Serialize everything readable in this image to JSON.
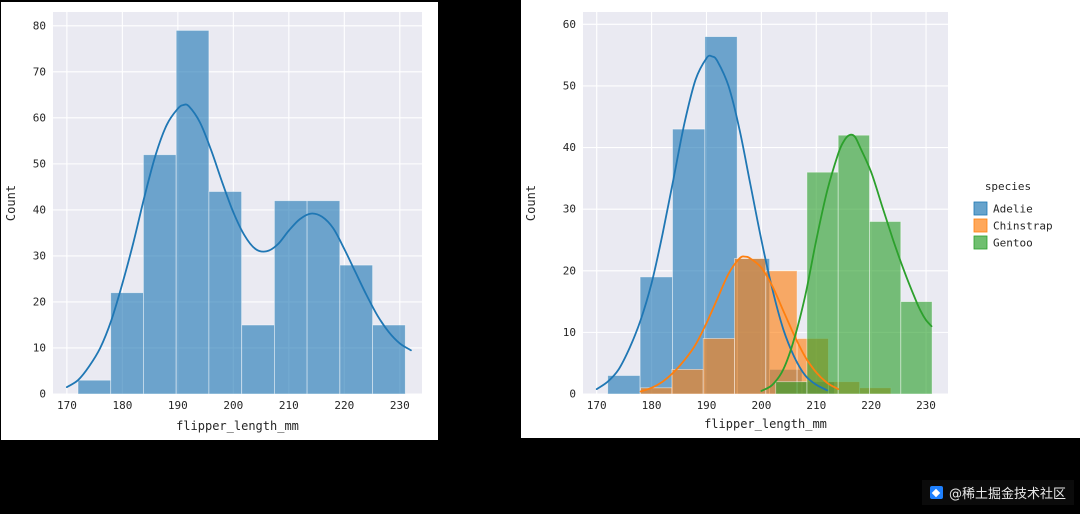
{
  "page": {
    "background": "#000000",
    "watermark_text": "@稀土掘金技术社区"
  },
  "chart_data": [
    {
      "type": "histogram",
      "title": "",
      "xlabel": "flipper_length_mm",
      "ylabel": "Count",
      "xlim": [
        167.5,
        234
      ],
      "ylim": [
        0,
        83
      ],
      "xticks": [
        170,
        180,
        190,
        200,
        210,
        220,
        230
      ],
      "yticks": [
        0,
        10,
        20,
        30,
        40,
        50,
        60,
        70,
        80
      ],
      "grid": true,
      "plot_background": "#eaeaf2",
      "legend": null,
      "series": [
        {
          "name": "flipper_length_mm",
          "color": "#1f77b4",
          "bin_start": 172,
          "bin_width": 5.9,
          "counts": [
            3,
            22,
            52,
            79,
            44,
            15,
            42,
            42,
            28,
            15
          ],
          "kde": [
            [
              170,
              1.5
            ],
            [
              172,
              3
            ],
            [
              174,
              6
            ],
            [
              176,
              10
            ],
            [
              178,
              16
            ],
            [
              180,
              24
            ],
            [
              182,
              33
            ],
            [
              184,
              43
            ],
            [
              186,
              52
            ],
            [
              188,
              58.5
            ],
            [
              190,
              62
            ],
            [
              191,
              62.8
            ],
            [
              192,
              62.5
            ],
            [
              194,
              59
            ],
            [
              196,
              53
            ],
            [
              198,
              46
            ],
            [
              200,
              39.5
            ],
            [
              202,
              34.5
            ],
            [
              204,
              31.5
            ],
            [
              206,
              31
            ],
            [
              208,
              32.5
            ],
            [
              210,
              35.5
            ],
            [
              212,
              38
            ],
            [
              214,
              39.2
            ],
            [
              216,
              38.5
            ],
            [
              218,
              36
            ],
            [
              220,
              31.5
            ],
            [
              222,
              26.5
            ],
            [
              224,
              21.5
            ],
            [
              226,
              17
            ],
            [
              228,
              13.5
            ],
            [
              230,
              11
            ],
            [
              232,
              9.5
            ]
          ]
        }
      ]
    },
    {
      "type": "histogram",
      "title": "",
      "xlabel": "flipper_length_mm",
      "ylabel": "Count",
      "xlim": [
        167.5,
        234
      ],
      "ylim": [
        0,
        62
      ],
      "xticks": [
        170,
        180,
        190,
        200,
        210,
        220,
        230
      ],
      "yticks": [
        0,
        10,
        20,
        30,
        40,
        50,
        60
      ],
      "grid": true,
      "plot_background": "#eaeaf2",
      "legend": {
        "title": "species",
        "position": "right"
      },
      "series": [
        {
          "name": "Adelie",
          "color": "#1f77b4",
          "bin_start": 172,
          "bin_width": 5.9,
          "counts": [
            3,
            19,
            43,
            58,
            22,
            4,
            2
          ],
          "kde": [
            [
              170,
              0.8
            ],
            [
              172,
              2
            ],
            [
              174,
              4
            ],
            [
              176,
              7.5
            ],
            [
              178,
              12
            ],
            [
              180,
              18
            ],
            [
              182,
              26
            ],
            [
              184,
              35
            ],
            [
              186,
              44
            ],
            [
              188,
              51
            ],
            [
              190,
              54.5
            ],
            [
              191,
              54.8
            ],
            [
              192,
              54
            ],
            [
              194,
              50
            ],
            [
              196,
              43
            ],
            [
              198,
              34
            ],
            [
              200,
              25
            ],
            [
              202,
              17
            ],
            [
              204,
              10.5
            ],
            [
              206,
              6
            ],
            [
              208,
              3
            ],
            [
              210,
              1.5
            ],
            [
              212,
              0.6
            ]
          ]
        },
        {
          "name": "Chinstrap",
          "color": "#ff7f0e",
          "bin_start": 178,
          "bin_width": 5.7,
          "counts": [
            1,
            4,
            9,
            22,
            20,
            9,
            2,
            1
          ],
          "kde": [
            [
              178,
              0.4
            ],
            [
              180,
              1
            ],
            [
              182,
              2
            ],
            [
              184,
              3.5
            ],
            [
              186,
              5.5
            ],
            [
              188,
              8
            ],
            [
              190,
              11.5
            ],
            [
              192,
              15.5
            ],
            [
              194,
              19.5
            ],
            [
              196,
              22
            ],
            [
              197,
              22.3
            ],
            [
              198,
              22
            ],
            [
              200,
              20.5
            ],
            [
              202,
              17.5
            ],
            [
              204,
              13.5
            ],
            [
              206,
              9.5
            ],
            [
              208,
              6
            ],
            [
              210,
              3.5
            ],
            [
              212,
              1.8
            ],
            [
              214,
              0.8
            ]
          ]
        },
        {
          "name": "Gentoo",
          "color": "#2ca02c",
          "bin_start": 202.6,
          "bin_width": 5.7,
          "counts": [
            2,
            36,
            42,
            28,
            15
          ],
          "kde": [
            [
              200,
              0.5
            ],
            [
              202,
              1.5
            ],
            [
              204,
              4
            ],
            [
              206,
              9
            ],
            [
              208,
              16
            ],
            [
              210,
              25
            ],
            [
              212,
              33
            ],
            [
              214,
              39
            ],
            [
              215,
              41
            ],
            [
              216,
              42
            ],
            [
              217,
              41.8
            ],
            [
              218,
              40
            ],
            [
              220,
              36
            ],
            [
              222,
              30.5
            ],
            [
              224,
              25
            ],
            [
              226,
              20
            ],
            [
              228,
              15.5
            ],
            [
              229,
              13.5
            ],
            [
              230,
              12
            ],
            [
              231,
              11
            ]
          ]
        }
      ]
    }
  ]
}
